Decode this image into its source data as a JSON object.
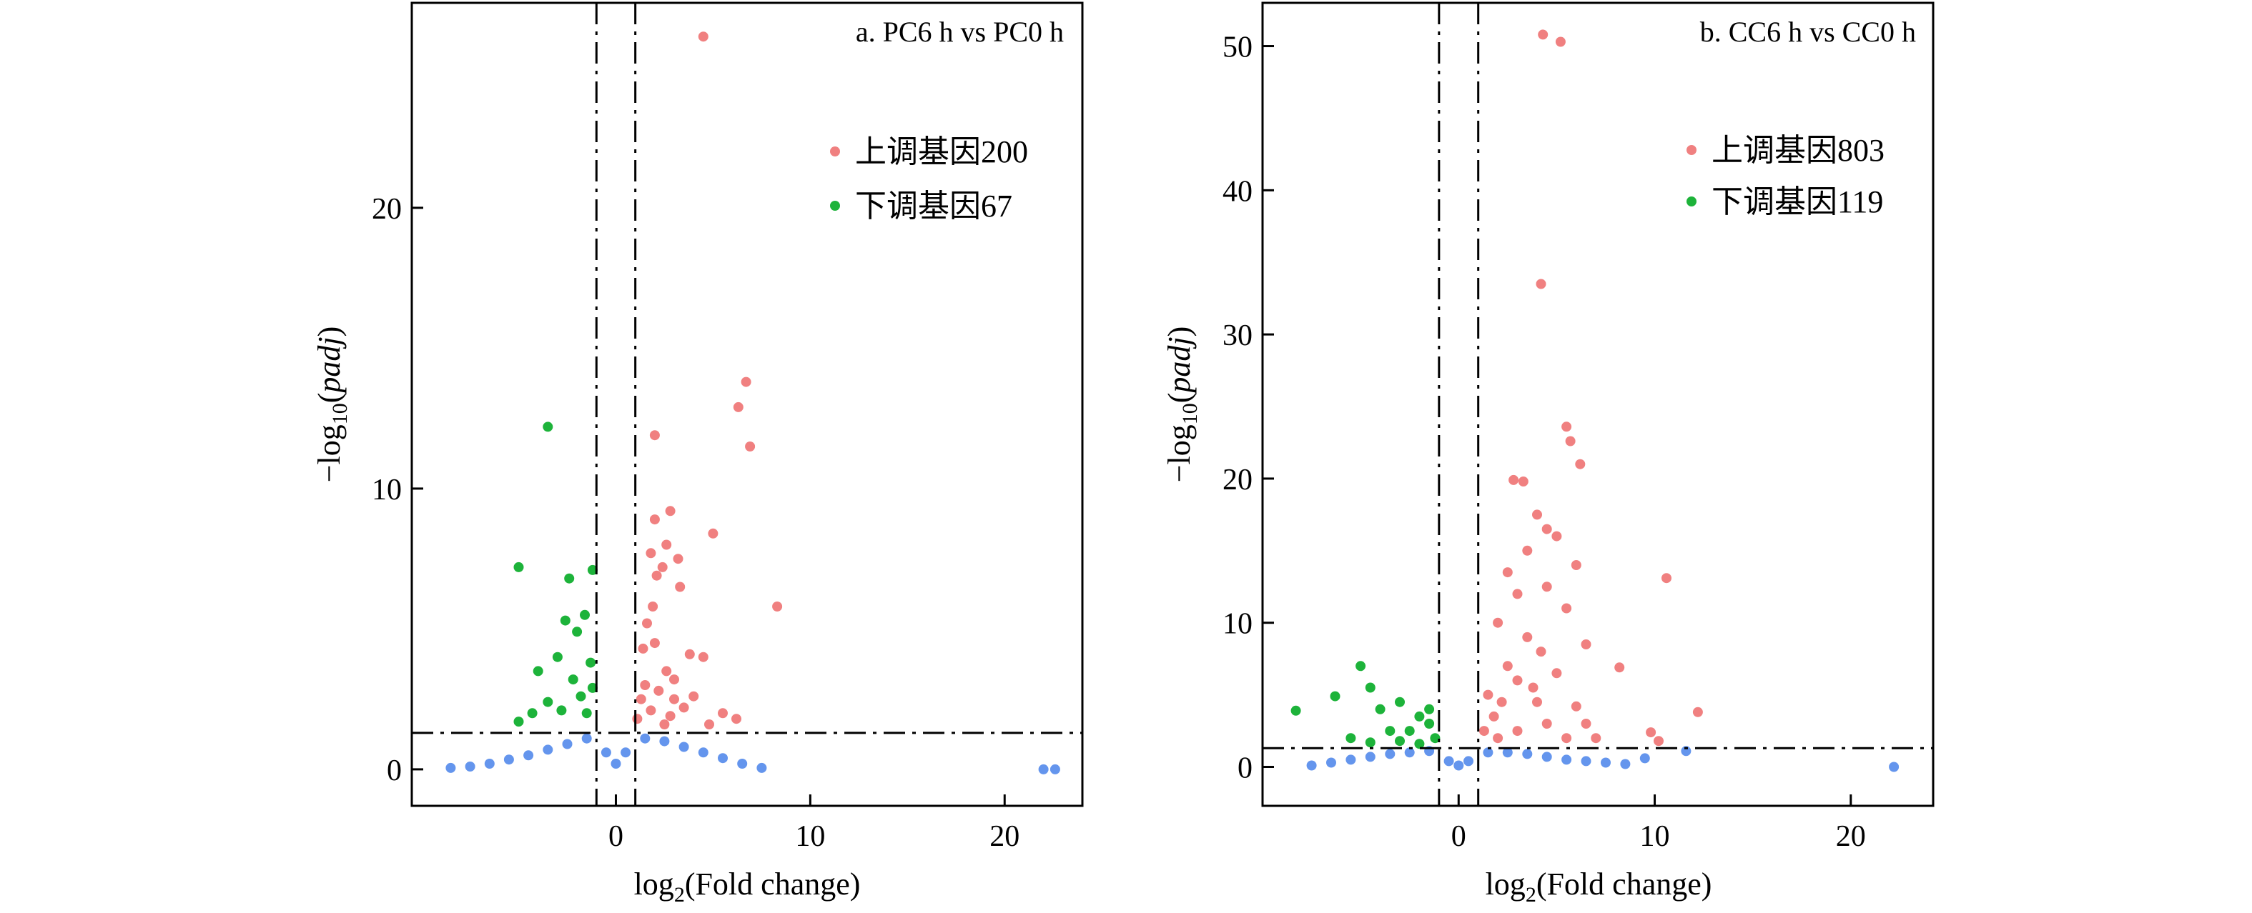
{
  "chart_data": [
    {
      "type": "scatter",
      "title": "a. PC6 h vs PC0 h",
      "xlabel_base": "log",
      "xlabel_sub": "2",
      "xlabel_rest": "(Fold change)",
      "ylabel_pre": "−log",
      "ylabel_sub": "10",
      "ylabel_open": "(",
      "ylabel_italic": "padj",
      "ylabel_close": ")",
      "xlim": [
        -10.5,
        24
      ],
      "ylim": [
        -1.3,
        27.3
      ],
      "xticks": [
        0,
        10,
        20
      ],
      "yticks": [
        0,
        10,
        20
      ],
      "vlines": [
        -1,
        1
      ],
      "hline": 1.3,
      "legend": [
        {
          "label": "上调基因200",
          "color": "#F08080"
        },
        {
          "label": "下调基因67",
          "color": "#1DB33A"
        }
      ],
      "series": [
        {
          "name": "up",
          "color": "#F08080",
          "points": [
            [
              4.5,
              26.1
            ],
            [
              6.7,
              13.8
            ],
            [
              6.3,
              12.9
            ],
            [
              2.0,
              11.9
            ],
            [
              6.9,
              11.5
            ],
            [
              8.3,
              5.8
            ],
            [
              2.8,
              9.2
            ],
            [
              2.0,
              8.9
            ],
            [
              5.0,
              8.4
            ],
            [
              2.6,
              8.0
            ],
            [
              2.4,
              7.2
            ],
            [
              2.1,
              6.9
            ],
            [
              3.3,
              6.5
            ],
            [
              3.2,
              7.5
            ],
            [
              1.8,
              7.7
            ],
            [
              3.8,
              4.1
            ],
            [
              4.5,
              4.0
            ],
            [
              1.9,
              5.8
            ],
            [
              1.6,
              5.2
            ],
            [
              1.4,
              4.3
            ],
            [
              2.0,
              4.5
            ],
            [
              2.6,
              3.5
            ],
            [
              3.0,
              3.2
            ],
            [
              1.5,
              3.0
            ],
            [
              2.2,
              2.8
            ],
            [
              4.0,
              2.6
            ],
            [
              5.5,
              2.0
            ],
            [
              6.2,
              1.8
            ],
            [
              3.5,
              2.2
            ],
            [
              2.8,
              1.9
            ],
            [
              1.3,
              2.5
            ],
            [
              1.8,
              2.1
            ],
            [
              4.8,
              1.6
            ],
            [
              2.5,
              1.6
            ],
            [
              1.1,
              1.8
            ],
            [
              3.0,
              2.5
            ]
          ]
        },
        {
          "name": "down",
          "color": "#1DB33A",
          "points": [
            [
              -3.5,
              12.2
            ],
            [
              -5.0,
              7.2
            ],
            [
              -1.2,
              7.1
            ],
            [
              -2.4,
              6.8
            ],
            [
              -2.6,
              5.3
            ],
            [
              -1.6,
              5.5
            ],
            [
              -2.0,
              4.9
            ],
            [
              -3.0,
              4.0
            ],
            [
              -4.0,
              3.5
            ],
            [
              -1.3,
              3.8
            ],
            [
              -2.2,
              3.2
            ],
            [
              -1.8,
              2.6
            ],
            [
              -3.5,
              2.4
            ],
            [
              -5.0,
              1.7
            ],
            [
              -1.5,
              2.0
            ],
            [
              -2.8,
              2.1
            ],
            [
              -4.3,
              2.0
            ],
            [
              -1.2,
              2.9
            ]
          ]
        },
        {
          "name": "ns",
          "color": "#6495ED",
          "points": [
            [
              -8.5,
              0.05
            ],
            [
              -7.5,
              0.1
            ],
            [
              -6.5,
              0.2
            ],
            [
              -5.5,
              0.35
            ],
            [
              -4.5,
              0.5
            ],
            [
              -3.5,
              0.7
            ],
            [
              -2.5,
              0.9
            ],
            [
              -1.5,
              1.1
            ],
            [
              -0.5,
              0.6
            ],
            [
              0.0,
              0.2
            ],
            [
              0.5,
              0.6
            ],
            [
              1.5,
              1.1
            ],
            [
              2.5,
              1.0
            ],
            [
              3.5,
              0.8
            ],
            [
              4.5,
              0.6
            ],
            [
              5.5,
              0.4
            ],
            [
              6.5,
              0.2
            ],
            [
              7.5,
              0.05
            ],
            [
              22.0,
              0.0
            ],
            [
              22.6,
              0.0
            ]
          ]
        }
      ]
    },
    {
      "type": "scatter",
      "title": "b. CC6 h vs CC0 h",
      "xlabel_base": "log",
      "xlabel_sub": "2",
      "xlabel_rest": "(Fold change)",
      "ylabel_pre": "−log",
      "ylabel_sub": "10",
      "ylabel_open": "(",
      "ylabel_italic": "padj",
      "ylabel_close": ")",
      "xlim": [
        -10.0,
        24.2
      ],
      "ylim": [
        -2.7,
        53.0
      ],
      "xticks": [
        0,
        10,
        20
      ],
      "yticks": [
        0,
        10,
        20,
        30,
        40,
        50
      ],
      "vlines": [
        -1,
        1
      ],
      "hline": 1.3,
      "legend": [
        {
          "label": "上调基因803",
          "color": "#F08080"
        },
        {
          "label": "下调基因119",
          "color": "#1DB33A"
        }
      ],
      "series": [
        {
          "name": "up",
          "color": "#F08080",
          "points": [
            [
              4.3,
              50.8
            ],
            [
              5.2,
              50.3
            ],
            [
              4.2,
              33.5
            ],
            [
              5.5,
              23.6
            ],
            [
              5.7,
              22.6
            ],
            [
              6.2,
              21.0
            ],
            [
              2.8,
              19.9
            ],
            [
              3.3,
              19.8
            ],
            [
              4.0,
              17.5
            ],
            [
              4.5,
              16.5
            ],
            [
              5.0,
              16.0
            ],
            [
              3.5,
              15.0
            ],
            [
              6.0,
              14.0
            ],
            [
              10.6,
              13.1
            ],
            [
              2.5,
              13.5
            ],
            [
              3.0,
              12.0
            ],
            [
              4.5,
              12.5
            ],
            [
              5.5,
              11.0
            ],
            [
              2.0,
              10.0
            ],
            [
              3.5,
              9.0
            ],
            [
              4.2,
              8.0
            ],
            [
              6.5,
              8.5
            ],
            [
              8.2,
              6.9
            ],
            [
              2.5,
              7.0
            ],
            [
              3.0,
              6.0
            ],
            [
              5.0,
              6.5
            ],
            [
              1.5,
              5.0
            ],
            [
              2.2,
              4.5
            ],
            [
              4.0,
              4.5
            ],
            [
              6.0,
              4.2
            ],
            [
              12.2,
              3.8
            ],
            [
              9.8,
              2.4
            ],
            [
              10.2,
              1.8
            ],
            [
              1.3,
              2.5
            ],
            [
              2.0,
              2.0
            ],
            [
              3.0,
              2.5
            ],
            [
              4.5,
              3.0
            ],
            [
              5.5,
              2.0
            ],
            [
              7.0,
              2.0
            ],
            [
              1.8,
              3.5
            ],
            [
              3.8,
              5.5
            ],
            [
              6.5,
              3.0
            ]
          ]
        },
        {
          "name": "down",
          "color": "#1DB33A",
          "points": [
            [
              -8.3,
              3.9
            ],
            [
              -5.0,
              7.0
            ],
            [
              -6.3,
              4.9
            ],
            [
              -4.5,
              5.5
            ],
            [
              -4.0,
              4.0
            ],
            [
              -3.0,
              4.5
            ],
            [
              -2.0,
              3.5
            ],
            [
              -1.5,
              3.0
            ],
            [
              -2.5,
              2.5
            ],
            [
              -3.5,
              2.5
            ],
            [
              -5.5,
              2.0
            ],
            [
              -1.2,
              2.0
            ],
            [
              -4.5,
              1.7
            ],
            [
              -2.0,
              1.6
            ],
            [
              -3.0,
              1.8
            ],
            [
              -1.5,
              4.0
            ]
          ]
        },
        {
          "name": "ns",
          "color": "#6495ED",
          "points": [
            [
              -7.5,
              0.1
            ],
            [
              -6.5,
              0.3
            ],
            [
              -5.5,
              0.5
            ],
            [
              -4.5,
              0.7
            ],
            [
              -3.5,
              0.9
            ],
            [
              -2.5,
              1.0
            ],
            [
              -1.5,
              1.1
            ],
            [
              -0.5,
              0.4
            ],
            [
              0.0,
              0.1
            ],
            [
              0.5,
              0.4
            ],
            [
              1.5,
              1.0
            ],
            [
              2.5,
              1.0
            ],
            [
              3.5,
              0.9
            ],
            [
              4.5,
              0.7
            ],
            [
              5.5,
              0.5
            ],
            [
              6.5,
              0.4
            ],
            [
              7.5,
              0.3
            ],
            [
              8.5,
              0.2
            ],
            [
              9.5,
              0.6
            ],
            [
              11.6,
              1.1
            ],
            [
              22.2,
              0.0
            ]
          ]
        }
      ]
    }
  ]
}
